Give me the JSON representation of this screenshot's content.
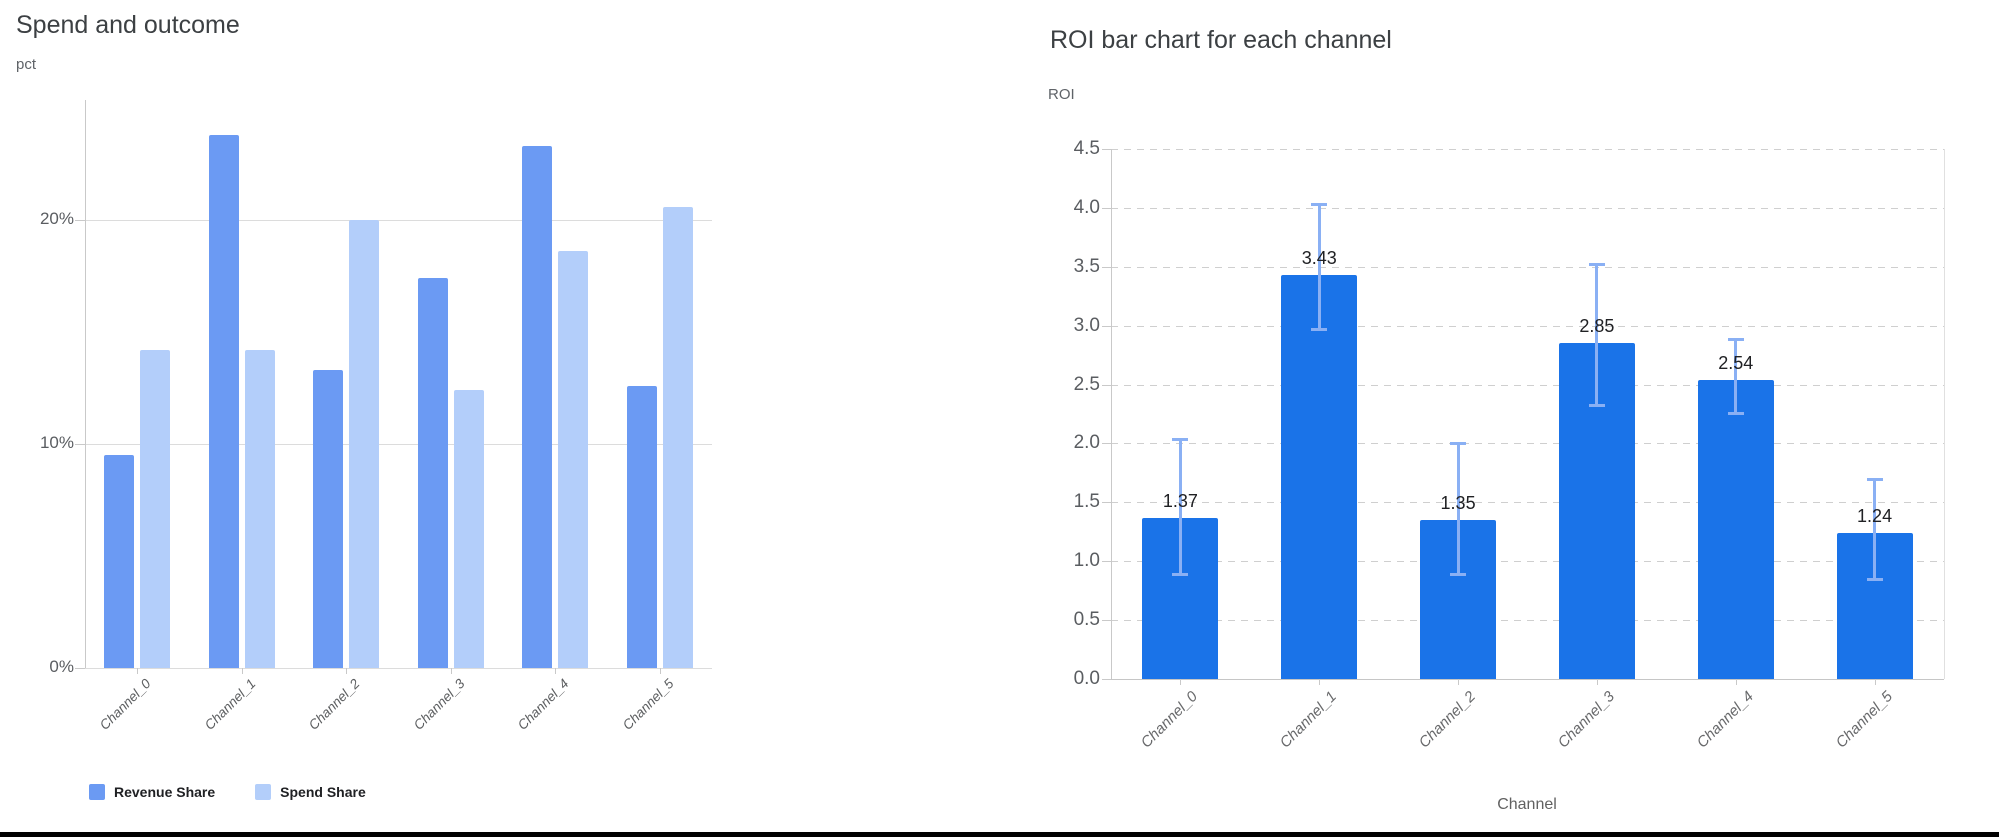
{
  "chart_data": [
    {
      "type": "bar",
      "title": "Spend and outcome",
      "ylabel": "pct",
      "categories": [
        "Channel_0",
        "Channel_1",
        "Channel_2",
        "Channel_3",
        "Channel_4",
        "Channel_5"
      ],
      "series": [
        {
          "name": "Revenue Share",
          "color": "#6b9af3",
          "values": [
            9.5,
            23.8,
            13.3,
            17.4,
            23.3,
            12.6
          ]
        },
        {
          "name": "Spend Share",
          "color": "#b3cefa",
          "values": [
            14.2,
            14.2,
            20.0,
            12.4,
            18.6,
            20.6
          ]
        }
      ],
      "y_ticks": [
        0,
        10,
        20
      ],
      "y_tick_labels": [
        "0%",
        "10%",
        "20%"
      ],
      "ylim": [
        0,
        25.4
      ],
      "grid": "solid-horizontal",
      "legend_position": "bottom"
    },
    {
      "type": "bar",
      "title": "ROI bar chart for each channel",
      "ylabel": "ROI",
      "xlabel": "Channel",
      "categories": [
        "Channel_0",
        "Channel_1",
        "Channel_2",
        "Channel_3",
        "Channel_4",
        "Channel_5"
      ],
      "values": [
        1.37,
        3.43,
        1.35,
        2.85,
        2.54,
        1.24
      ],
      "data_labels": [
        "1.37",
        "3.43",
        "1.35",
        "2.85",
        "2.54",
        "1.24"
      ],
      "error_low": [
        0.88,
        2.96,
        0.88,
        2.32,
        2.25,
        0.84
      ],
      "error_high": [
        2.04,
        4.03,
        2.0,
        3.52,
        2.89,
        1.7
      ],
      "bar_color": "#1a73e8",
      "error_color": "#8ab0f4",
      "y_ticks": [
        0.0,
        0.5,
        1.0,
        1.5,
        2.0,
        2.5,
        3.0,
        3.5,
        4.0,
        4.5
      ],
      "y_tick_labels": [
        "0.0",
        "0.5",
        "1.0",
        "1.5",
        "2.0",
        "2.5",
        "3.0",
        "3.5",
        "4.0",
        "4.5"
      ],
      "ylim": [
        0,
        4.5
      ],
      "grid": "dashed-horizontal"
    }
  ]
}
